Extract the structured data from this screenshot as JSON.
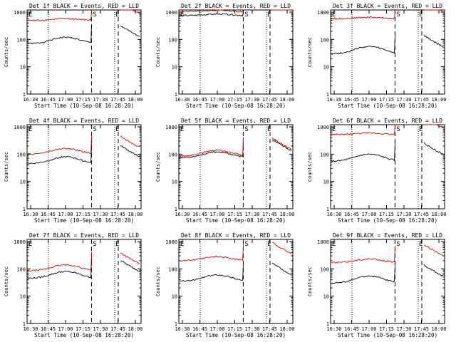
{
  "page": {
    "background": "#ffffff"
  },
  "colors": {
    "events": "#000000",
    "lld": "#e00000",
    "axis": "#000000"
  },
  "x_tick_labels": [
    "16:30",
    "16:45",
    "17:00",
    "17:15",
    "17:30",
    "17:45",
    "18:00"
  ],
  "y_tick_labels": [
    "1",
    "10",
    "100",
    "1000"
  ],
  "ylabel": "Counts/sec",
  "xlabel": "Start Time (10-Sep-08 16:28:20)",
  "chart_data": [
    {
      "type": "line",
      "title": "Det 1f BLACK = Events, RED = LLD",
      "det": 1,
      "ylim": [
        1,
        1200
      ],
      "yscale": "log",
      "markers": [
        {
          "label": "E",
          "t": 0.0
        },
        {
          "label": "S",
          "t": 0.64
        },
        {
          "label": "E",
          "t": 0.8
        }
      ],
      "series": [
        {
          "name": "Events",
          "base": 70,
          "peak": 120
        },
        {
          "name": "LLD",
          "base": 500,
          "peak": 580
        }
      ]
    },
    {
      "type": "line",
      "title": "Det 2f BLACK = Events, RED = LLD",
      "det": 2,
      "ylim": [
        1,
        1200
      ],
      "yscale": "log",
      "markers": [
        {
          "label": "E",
          "t": 0.0
        },
        {
          "label": "S",
          "t": 0.64
        },
        {
          "label": "E",
          "t": 0.8
        }
      ],
      "series": [
        {
          "name": "Events",
          "base": 750,
          "peak": 850
        },
        {
          "name": "LLD",
          "base": 1050,
          "peak": 1150
        }
      ]
    },
    {
      "type": "line",
      "title": "Det 3f BLACK = Events, RED = LLD",
      "det": 3,
      "ylim": [
        1,
        1200
      ],
      "yscale": "log",
      "markers": [
        {
          "label": "E",
          "t": 0.0
        },
        {
          "label": "S",
          "t": 0.64
        },
        {
          "label": "E",
          "t": 0.8
        }
      ],
      "series": [
        {
          "name": "Events",
          "base": 30,
          "peak": 55
        },
        {
          "name": "LLD",
          "base": 580,
          "peak": 650
        }
      ]
    },
    {
      "type": "line",
      "title": "Det 4f BLACK = Events, RED = LLD",
      "det": 4,
      "ylim": [
        1,
        1200
      ],
      "yscale": "log",
      "markers": [
        {
          "label": "E",
          "t": 0.0
        },
        {
          "label": "S",
          "t": 0.64
        },
        {
          "label": "E",
          "t": 0.8
        }
      ],
      "series": [
        {
          "name": "Events",
          "base": 45,
          "peak": 80
        },
        {
          "name": "LLD",
          "base": 100,
          "peak": 160
        }
      ]
    },
    {
      "type": "line",
      "title": "Det 5f BLACK = Events, RED = LLD",
      "det": 5,
      "ylim": [
        1,
        1200
      ],
      "yscale": "log",
      "markers": [
        {
          "label": "E",
          "t": 0.0
        },
        {
          "label": "S",
          "t": 0.64
        },
        {
          "label": "E",
          "t": 0.8
        }
      ],
      "series": [
        {
          "name": "Events",
          "base": 75,
          "peak": 120
        },
        {
          "name": "LLD",
          "base": 85,
          "peak": 140
        }
      ]
    },
    {
      "type": "line",
      "title": "Det 6f BLACK = Events, RED = LLD",
      "det": 6,
      "ylim": [
        1,
        1200
      ],
      "yscale": "log",
      "markers": [
        {
          "label": "E",
          "t": 0.0
        },
        {
          "label": "S",
          "t": 0.64
        },
        {
          "label": "E",
          "t": 0.8
        }
      ],
      "series": [
        {
          "name": "Events",
          "base": 55,
          "peak": 100
        },
        {
          "name": "LLD",
          "base": 520,
          "peak": 600
        }
      ]
    },
    {
      "type": "line",
      "title": "Det 7f BLACK = Events, RED = LLD",
      "det": 7,
      "ylim": [
        1,
        1200
      ],
      "yscale": "log",
      "markers": [
        {
          "label": "E",
          "t": 0.0
        },
        {
          "label": "S",
          "t": 0.64
        },
        {
          "label": "E",
          "t": 0.8
        }
      ],
      "series": [
        {
          "name": "Events",
          "base": 45,
          "peak": 80
        },
        {
          "name": "LLD",
          "base": 85,
          "peak": 140
        }
      ]
    },
    {
      "type": "line",
      "title": "Det 8f BLACK = Events, RED = LLD",
      "det": 8,
      "ylim": [
        1,
        1200
      ],
      "yscale": "log",
      "markers": [
        {
          "label": "E",
          "t": 0.0
        },
        {
          "label": "S",
          "t": 0.64
        },
        {
          "label": "E",
          "t": 0.8
        }
      ],
      "series": [
        {
          "name": "Events",
          "base": 35,
          "peak": 60
        },
        {
          "name": "LLD",
          "base": 200,
          "peak": 280
        }
      ]
    },
    {
      "type": "line",
      "title": "Det 9f BLACK = Events, RED = LLD",
      "det": 9,
      "ylim": [
        1,
        1200
      ],
      "yscale": "log",
      "markers": [
        {
          "label": "E",
          "t": 0.0
        },
        {
          "label": "S",
          "t": 0.64
        },
        {
          "label": "E",
          "t": 0.8
        }
      ],
      "series": [
        {
          "name": "Events",
          "base": 30,
          "peak": 55
        },
        {
          "name": "LLD",
          "base": 170,
          "peak": 230
        }
      ]
    }
  ]
}
